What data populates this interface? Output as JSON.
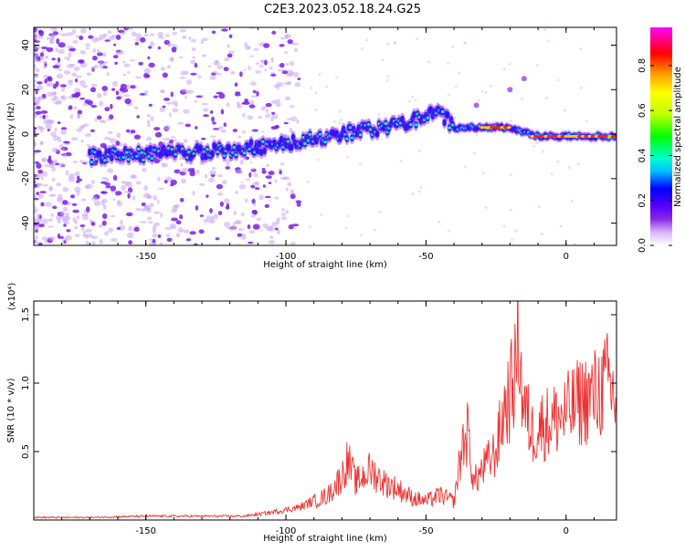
{
  "title": "C2E3.2023.052.18.24.G25",
  "chart_data": [
    {
      "type": "heatmap",
      "xlabel": "Height of straight line (km)",
      "ylabel": "Frequency (Hz)",
      "xlim": [
        -190,
        18
      ],
      "ylim": [
        -50,
        48
      ],
      "xticks": [
        -150,
        -100,
        -50,
        0
      ],
      "yticks": [
        -40,
        -20,
        0,
        20,
        40
      ],
      "colorbar": {
        "label": "Normalized spectral amplitude",
        "range": [
          0,
          0.97
        ],
        "ticks": [
          0.0,
          0.2,
          0.4,
          0.6,
          0.8
        ],
        "colormap": [
          "#ffffff",
          "#d9b3ff",
          "#8a2be2",
          "#5500ff",
          "#0000ff",
          "#00bfff",
          "#00ffcc",
          "#00ff00",
          "#bfff00",
          "#ffff00",
          "#ffa500",
          "#ff0000",
          "#ff00ff"
        ]
      },
      "ridge": {
        "x": [
          -170,
          -150,
          -130,
          -110,
          -100,
          -90,
          -80,
          -70,
          -60,
          -50,
          -45,
          -40,
          -30,
          -20,
          -15,
          -10,
          0,
          10,
          18
        ],
        "y": [
          -10,
          -9,
          -8,
          -6,
          -4,
          -2,
          0,
          2,
          4,
          8,
          10,
          3,
          3,
          3,
          1,
          -1,
          -1,
          -1,
          -1
        ]
      },
      "hot_segments": [
        {
          "x": [
            -30,
            -20
          ],
          "y": 3
        },
        {
          "x": [
            -12,
            18
          ],
          "y": -1
        }
      ],
      "noise_spots": [
        {
          "x": -15,
          "y": 25
        },
        {
          "x": -20,
          "y": 20
        },
        {
          "x": -32,
          "y": 13
        }
      ]
    },
    {
      "type": "line",
      "xlabel": "Height of straight line (km)",
      "ylabel": "SNR (10 * v/v)",
      "yscale_label": "(x10⁴)",
      "xlim": [
        -190,
        18
      ],
      "ylim": [
        0,
        1.6
      ],
      "xticks": [
        -150,
        -100,
        -50,
        0
      ],
      "yticks": [
        0.5,
        1.0,
        1.5
      ],
      "color": "#ee3333",
      "series": [
        {
          "x": [
            -190,
            -170,
            -150,
            -130,
            -115,
            -105,
            -95,
            -85,
            -80,
            -78,
            -75,
            -70,
            -65,
            -60,
            -55,
            -50,
            -45,
            -40,
            -37,
            -35,
            -33,
            -30,
            -25,
            -22,
            -20,
            -18,
            -17,
            -16,
            -15,
            -12,
            -10,
            -5,
            0,
            5,
            10,
            15,
            18
          ],
          "y": [
            0.02,
            0.02,
            0.03,
            0.03,
            0.03,
            0.06,
            0.1,
            0.2,
            0.35,
            0.48,
            0.3,
            0.4,
            0.3,
            0.25,
            0.18,
            0.15,
            0.2,
            0.15,
            0.6,
            0.7,
            0.3,
            0.4,
            0.55,
            0.9,
            1.0,
            1.2,
            1.6,
            1.1,
            0.9,
            0.7,
            0.75,
            0.8,
            0.85,
            0.95,
            1.0,
            1.1,
            0.95
          ]
        }
      ]
    }
  ]
}
